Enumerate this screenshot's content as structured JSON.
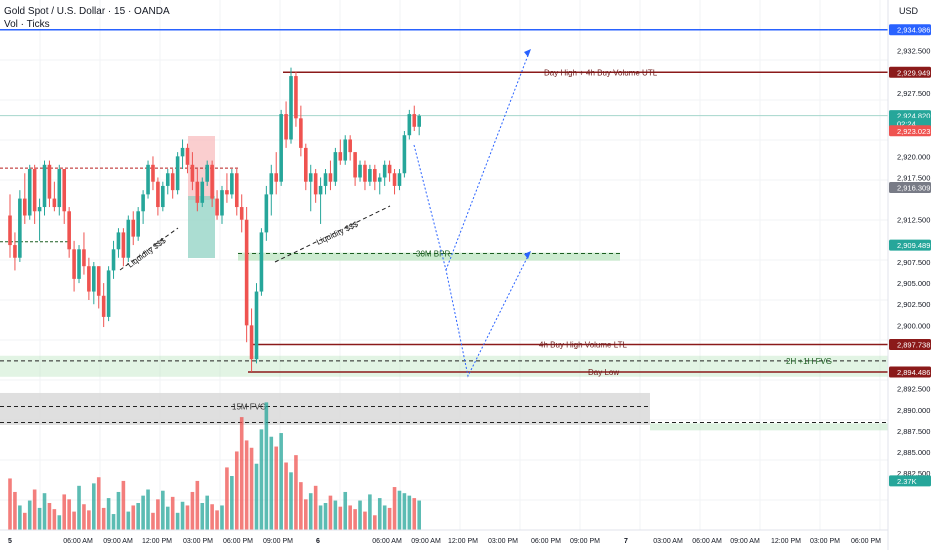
{
  "header": {
    "title": "Gold Spot / U.S. Dollar · 15 · OANDA",
    "volume_label": "Vol · Ticks",
    "currency": "USD"
  },
  "colors": {
    "up": "#26a69a",
    "down": "#ef5350",
    "level_line": "#8b1a1a",
    "blue_line": "#2962ff",
    "projection": "#2962ff",
    "zone_green": "#bfe6c4",
    "zone_gray": "#d9d9d9",
    "zone_pink": "#f8b4b6",
    "zone_teal": "#8fd1c3"
  },
  "chart_data": {
    "type": "candlestick",
    "symbol": "XAUUSD",
    "timeframe": "15",
    "ylim": [
      2878.6,
      2938.6
    ],
    "y_ticks": [
      "2,932.500",
      "2,927.500",
      "2,920.000",
      "2,917.500",
      "2,912.500",
      "2,907.500",
      "2,905.000",
      "2,902.500",
      "2,900.000",
      "2,892.500",
      "2,890.000",
      "2,887.500",
      "2,885.000",
      "2,882.500"
    ],
    "x_labels": [
      "5",
      "06:00 AM",
      "09:00 AM",
      "12:00 PM",
      "03:00 PM",
      "06:00 PM",
      "09:00 PM",
      "6",
      "06:00 AM",
      "09:00 AM",
      "12:00 PM",
      "03:00 PM",
      "06:00 PM",
      "09:00 PM",
      "7",
      "03:00 AM",
      "06:00 AM",
      "09:00 AM",
      "12:00 PM",
      "03:00 PM",
      "06:00 PM"
    ],
    "price_tags": [
      {
        "id": "blue_level",
        "text": "2,934.986",
        "price": 2934.986,
        "color": "#2962ff"
      },
      {
        "id": "day_high",
        "text": "2,929.949",
        "price": 2929.949,
        "color": "#8b1a1a"
      },
      {
        "id": "last_price",
        "text": "2,924.820",
        "price": 2924.82,
        "color": "#26a69a"
      },
      {
        "id": "countdown",
        "text": "02:24",
        "price": 2923.9,
        "color": "#26a69a"
      },
      {
        "id": "bid",
        "text": "2,923.023",
        "price": 2923.023,
        "color": "#ef5350"
      },
      {
        "id": "gray_level",
        "text": "2,916.309",
        "price": 2916.309,
        "color": "#787b86"
      },
      {
        "id": "bpr_level",
        "text": "2,909.489",
        "price": 2909.489,
        "color": "#26a69a"
      },
      {
        "id": "ltl_level",
        "text": "2,897.738",
        "price": 2897.738,
        "color": "#8b1a1a"
      },
      {
        "id": "day_low",
        "text": "2,894.486",
        "price": 2894.486,
        "color": "#8b1a1a"
      },
      {
        "id": "volume_value",
        "text": "2.37K",
        "price": 2881.6,
        "color": "#26a69a"
      }
    ],
    "level_labels": {
      "day_high": "Day High + 4h Buy Volume UTL",
      "bpr": "30M BPR",
      "ltl": "4h Buy High Volume LTL",
      "fvg_2h": "2H +1H FVG",
      "day_low": "Day Low",
      "fvg_15m": "15M FVG",
      "liquidity_1": "Liquidity $$$",
      "liquidity_2": "Liquidity $$$"
    },
    "candles": [
      [
        2913.0,
        2915.5,
        2908.0,
        2909.5
      ],
      [
        2909.5,
        2911.0,
        2906.5,
        2908.0
      ],
      [
        2908.0,
        2916.0,
        2907.5,
        2915.0
      ],
      [
        2915.0,
        2918.0,
        2912.0,
        2913.0
      ],
      [
        2913.0,
        2919.0,
        2912.5,
        2918.5
      ],
      [
        2918.5,
        2919.0,
        2912.0,
        2913.5
      ],
      [
        2913.5,
        2915.0,
        2910.0,
        2914.0
      ],
      [
        2914.0,
        2919.5,
        2913.0,
        2919.0
      ],
      [
        2919.0,
        2919.5,
        2914.0,
        2915.0
      ],
      [
        2915.0,
        2917.0,
        2913.5,
        2914.0
      ],
      [
        2914.0,
        2919.0,
        2913.0,
        2918.5
      ],
      [
        2918.5,
        2918.5,
        2912.0,
        2913.5
      ],
      [
        2913.5,
        2914.0,
        2908.0,
        2909.0
      ],
      [
        2909.0,
        2910.0,
        2904.0,
        2905.5
      ],
      [
        2905.5,
        2909.5,
        2905.0,
        2909.0
      ],
      [
        2909.0,
        2911.0,
        2906.0,
        2907.0
      ],
      [
        2907.0,
        2908.0,
        2903.0,
        2904.0
      ],
      [
        2904.0,
        2907.5,
        2902.5,
        2907.0
      ],
      [
        2907.0,
        2907.0,
        2902.0,
        2903.5
      ],
      [
        2903.5,
        2905.0,
        2899.8,
        2901.0
      ],
      [
        2901.0,
        2907.0,
        2900.5,
        2906.5
      ],
      [
        2906.5,
        2910.0,
        2905.5,
        2909.0
      ],
      [
        2909.0,
        2911.5,
        2908.0,
        2911.0
      ],
      [
        2911.0,
        2911.5,
        2907.0,
        2908.0
      ],
      [
        2908.0,
        2913.0,
        2907.5,
        2912.5
      ],
      [
        2912.5,
        2913.5,
        2909.5,
        2910.5
      ],
      [
        2910.5,
        2914.0,
        2910.0,
        2913.5
      ],
      [
        2913.5,
        2916.0,
        2912.0,
        2915.5
      ],
      [
        2915.5,
        2919.5,
        2915.0,
        2919.0
      ],
      [
        2919.0,
        2920.0,
        2916.0,
        2917.0
      ],
      [
        2917.0,
        2917.5,
        2913.0,
        2914.0
      ],
      [
        2914.0,
        2917.0,
        2913.5,
        2916.5
      ],
      [
        2916.5,
        2918.5,
        2915.5,
        2918.0
      ],
      [
        2918.0,
        2918.5,
        2915.0,
        2916.0
      ],
      [
        2916.0,
        2920.5,
        2915.5,
        2920.0
      ],
      [
        2920.0,
        2922.0,
        2918.5,
        2921.0
      ],
      [
        2921.0,
        2921.5,
        2918.0,
        2919.0
      ],
      [
        2919.0,
        2920.5,
        2916.0,
        2917.0
      ],
      [
        2917.0,
        2918.5,
        2913.5,
        2914.5
      ],
      [
        2914.5,
        2917.5,
        2914.0,
        2917.0
      ],
      [
        2917.0,
        2919.5,
        2916.5,
        2919.0
      ],
      [
        2919.0,
        2919.5,
        2914.0,
        2915.0
      ],
      [
        2915.0,
        2916.0,
        2912.5,
        2913.0
      ],
      [
        2913.0,
        2916.5,
        2912.0,
        2916.0
      ],
      [
        2916.0,
        2918.0,
        2914.5,
        2915.5
      ],
      [
        2915.5,
        2918.5,
        2915.0,
        2918.0
      ],
      [
        2918.0,
        2918.5,
        2913.0,
        2914.0
      ],
      [
        2914.0,
        2915.5,
        2911.0,
        2912.5
      ],
      [
        2912.5,
        2914.0,
        2898.0,
        2900.0
      ],
      [
        2900.0,
        2902.0,
        2894.5,
        2896.0
      ],
      [
        2896.0,
        2905.0,
        2895.5,
        2904.0
      ],
      [
        2904.0,
        2911.5,
        2903.5,
        2911.0
      ],
      [
        2911.0,
        2916.5,
        2910.0,
        2915.5
      ],
      [
        2915.5,
        2919.0,
        2913.0,
        2918.0
      ],
      [
        2918.0,
        2920.5,
        2915.5,
        2917.0
      ],
      [
        2917.0,
        2925.5,
        2916.5,
        2925.0
      ],
      [
        2925.0,
        2926.5,
        2921.0,
        2922.0
      ],
      [
        2922.0,
        2930.5,
        2921.5,
        2929.5
      ],
      [
        2929.5,
        2930.0,
        2923.5,
        2924.5
      ],
      [
        2924.5,
        2926.0,
        2920.0,
        2921.0
      ],
      [
        2921.0,
        2921.5,
        2916.0,
        2917.0
      ],
      [
        2917.0,
        2919.0,
        2913.5,
        2918.0
      ],
      [
        2918.0,
        2918.5,
        2914.5,
        2915.5
      ],
      [
        2915.5,
        2917.5,
        2912.0,
        2916.5
      ],
      [
        2916.5,
        2918.5,
        2915.5,
        2918.0
      ],
      [
        2918.0,
        2919.5,
        2916.0,
        2917.0
      ],
      [
        2917.0,
        2921.0,
        2916.5,
        2920.5
      ],
      [
        2920.5,
        2922.0,
        2919.0,
        2919.5
      ],
      [
        2919.5,
        2922.5,
        2919.0,
        2922.0
      ],
      [
        2922.0,
        2922.5,
        2919.5,
        2920.5
      ],
      [
        2920.5,
        2920.5,
        2916.5,
        2917.5
      ],
      [
        2917.5,
        2919.5,
        2917.0,
        2919.0
      ],
      [
        2919.0,
        2919.5,
        2916.0,
        2917.0
      ],
      [
        2917.0,
        2919.0,
        2916.5,
        2918.5
      ],
      [
        2918.5,
        2919.0,
        2916.0,
        2917.0
      ],
      [
        2917.0,
        2918.0,
        2915.5,
        2917.5
      ],
      [
        2917.5,
        2919.5,
        2916.5,
        2919.0
      ],
      [
        2919.0,
        2919.5,
        2917.0,
        2918.0
      ],
      [
        2918.0,
        2918.5,
        2915.5,
        2916.5
      ],
      [
        2916.5,
        2918.5,
        2916.0,
        2918.0
      ],
      [
        2918.0,
        2923.0,
        2917.5,
        2922.5
      ],
      [
        2922.5,
        2925.5,
        2922.0,
        2925.0
      ],
      [
        2925.0,
        2926.0,
        2923.0,
        2923.5
      ],
      [
        2923.5,
        2925.0,
        2922.5,
        2924.8
      ]
    ],
    "volume": [
      4.2,
      3.1,
      2.0,
      1.4,
      2.4,
      3.3,
      1.8,
      3.0,
      2.2,
      1.7,
      1.2,
      2.9,
      2.5,
      1.5,
      3.6,
      2.1,
      1.6,
      3.8,
      4.3,
      1.8,
      2.6,
      1.3,
      3.1,
      4.0,
      1.5,
      2.0,
      2.2,
      2.8,
      3.3,
      1.4,
      2.5,
      3.2,
      1.9,
      2.7,
      1.4,
      2.3,
      2.0,
      3.1,
      4.0,
      2.2,
      2.8,
      2.1,
      1.6,
      2.0,
      5.1,
      4.4,
      6.4,
      9.2,
      7.3,
      6.7,
      5.4,
      8.2,
      10.4,
      7.6,
      6.8,
      7.9,
      5.5,
      4.7,
      6.1,
      3.9,
      2.5,
      3.0,
      3.6,
      2.0,
      2.2,
      2.8,
      2.4,
      1.9,
      3.1,
      2.0,
      1.7,
      2.4,
      1.5,
      2.9,
      1.2,
      2.6,
      2.0,
      1.8,
      3.5,
      3.2,
      3.0,
      2.8,
      2.6,
      2.4
    ],
    "volume_ylim": [
      0,
      11
    ]
  }
}
